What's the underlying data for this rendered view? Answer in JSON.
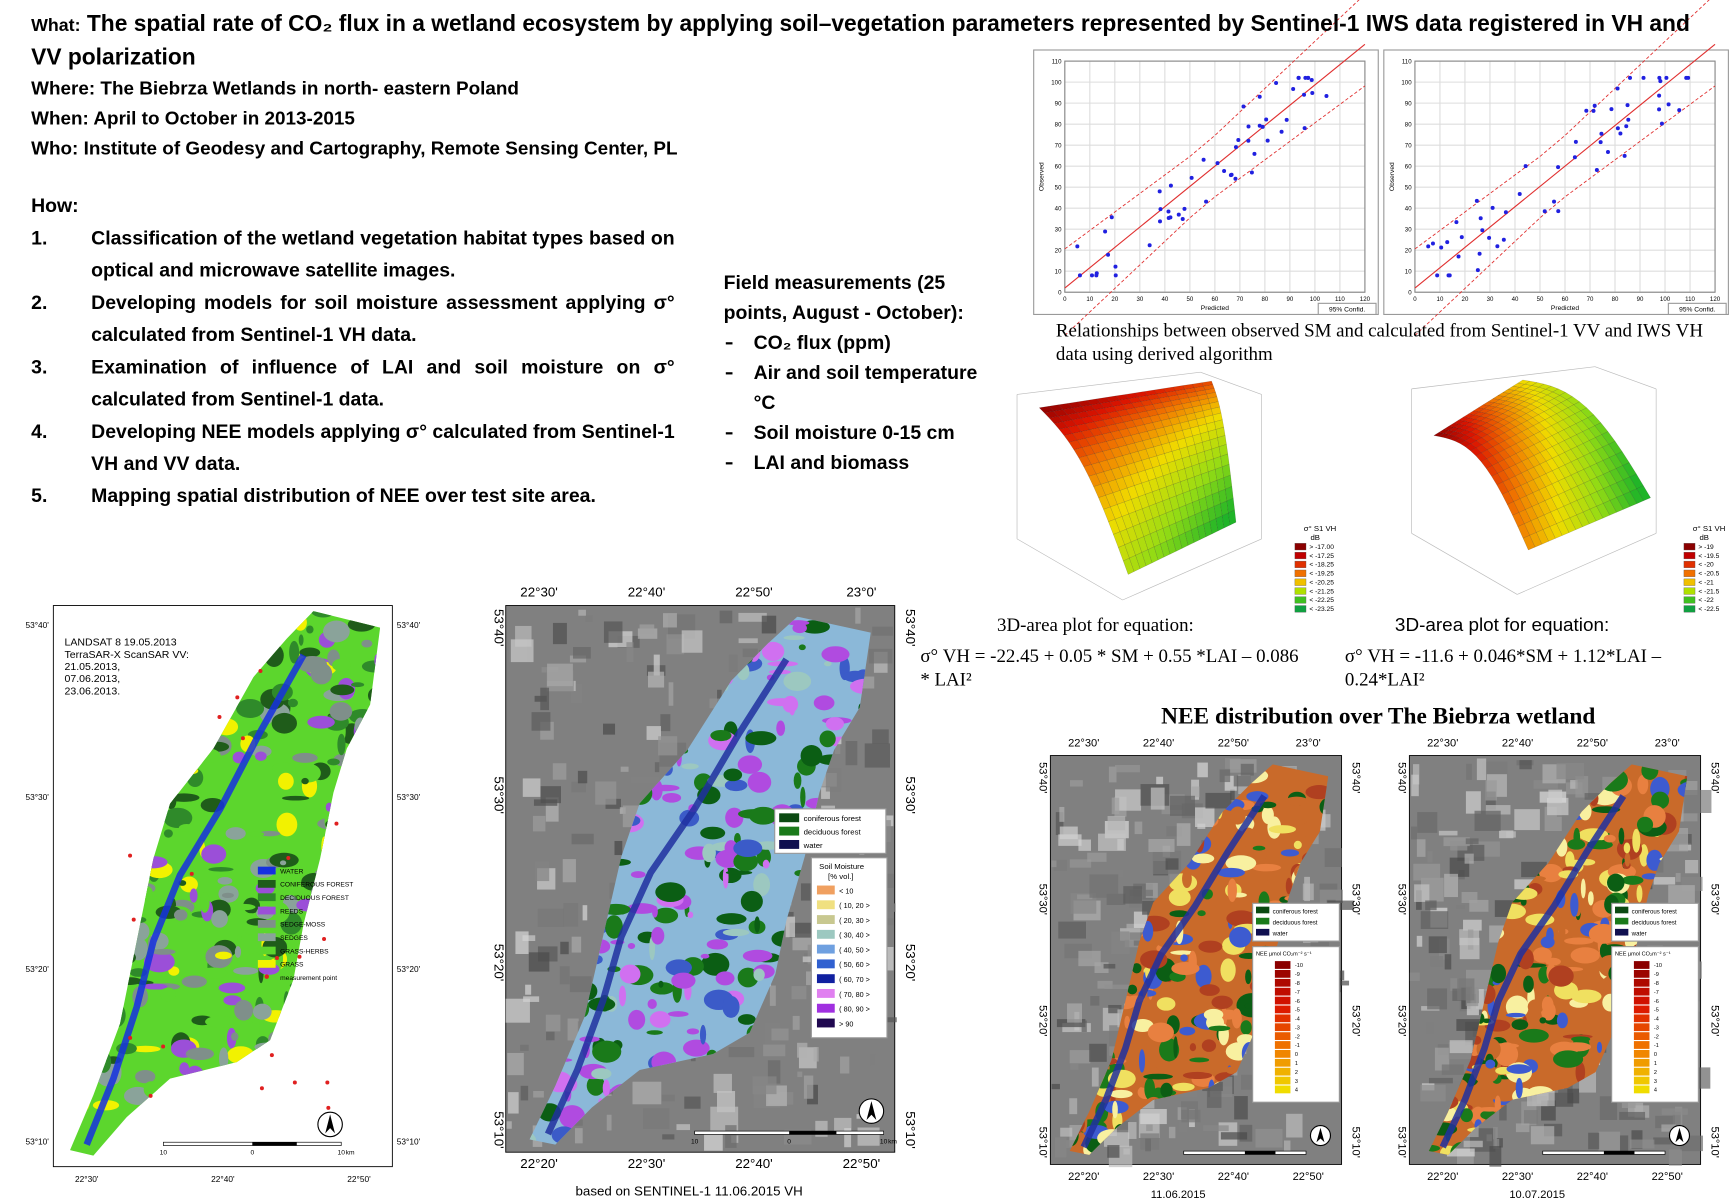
{
  "header": {
    "what_label": "What:",
    "title": "The spatial rate of CO₂ flux in a wetland ecosystem by applying soil–vegetation parameters represented by Sentinel-1 IWS data registered in VH and VV polarization",
    "where": "Where: The Biebrza Wetlands in north- eastern Poland",
    "when": "When:  April to October in 2013-2015",
    "who": "Who: Institute of Geodesy and Cartography, Remote Sensing Center, PL"
  },
  "how": {
    "heading": "How:",
    "steps": [
      {
        "number": "1.",
        "text": "Classification of the wetland vegetation habitat types based on optical and microwave satellite images."
      },
      {
        "number": "2.",
        "text": "Developing models for soil moisture assessment applying σ° calculated from Sentinel-1 VH data."
      },
      {
        "number": "3.",
        "text": "Examination of influence of LAI and soil moisture on σ° calculated from Sentinel-1 data."
      },
      {
        "number": "4.",
        "text": "Developing NEE models applying σ° calculated from Sentinel-1 VH and VV data."
      },
      {
        "number": "5.",
        "text": "Mapping spatial distribution of NEE over test site area."
      }
    ]
  },
  "field": {
    "heading": "Field measurements (25 points, August - October):",
    "items": [
      "CO₂ flux (ppm)",
      "Air and soil temperature °C",
      "Soil moisture 0-15 cm",
      "LAI and biomass"
    ]
  },
  "scatter": {
    "caption": "Relationships between observed SM and calculated from Sentinel-1 VV and IWS VH data using derived algorithm",
    "plots": [
      {
        "x_label": "Predicted",
        "y_label": "Observed",
        "legend": "95% Confid.",
        "xticks": [
          0,
          10,
          20,
          30,
          40,
          50,
          60,
          70,
          80,
          90,
          100,
          110,
          120
        ],
        "yticks": [
          0,
          10,
          20,
          30,
          40,
          50,
          60,
          70,
          80,
          90,
          100,
          110
        ]
      },
      {
        "x_label": "Predicted",
        "y_label": "Observed",
        "legend": "95% Confid.",
        "xticks": [
          0,
          10,
          20,
          30,
          40,
          50,
          60,
          70,
          80,
          90,
          100,
          110,
          120
        ],
        "yticks": [
          0,
          10,
          20,
          30,
          40,
          50,
          60,
          70,
          80,
          90,
          100,
          110
        ]
      }
    ]
  },
  "surface": {
    "plots": [
      {
        "caption": "3D-area plot for equation:",
        "equation": "σ° VH = -22.45 + 0.05 * SM + 0.55 *LAI – 0.086 * LAI²",
        "legend_title": "σ° S1 VH",
        "legend_unit": "dB",
        "legend": [
          {
            "label": "> -17.00",
            "color": "#8b0000"
          },
          {
            "label": "< -17.25",
            "color": "#c00000"
          },
          {
            "label": "< -18.25",
            "color": "#e03000"
          },
          {
            "label": "< -19.25",
            "color": "#f07000"
          },
          {
            "label": "< -20.25",
            "color": "#f0c000"
          },
          {
            "label": "< -21.25",
            "color": "#b0e000"
          },
          {
            "label": "< -22.25",
            "color": "#40c020"
          },
          {
            "label": "< -23.25",
            "color": "#10a040"
          }
        ]
      },
      {
        "caption": "3D-area plot for equation:",
        "equation": "σ° VH = -11.6 + 0.046*SM + 1.12*LAI – 0.24*LAI²",
        "legend_title": "σ° S1 VH",
        "legend_unit": "dB",
        "legend": [
          {
            "label": "> -19",
            "color": "#8b0000"
          },
          {
            "label": "< -19.5",
            "color": "#c00000"
          },
          {
            "label": "< -20",
            "color": "#e03000"
          },
          {
            "label": "< -20.5",
            "color": "#f07000"
          },
          {
            "label": "< -21",
            "color": "#f0c000"
          },
          {
            "label": "< -21.5",
            "color": "#b0e000"
          },
          {
            "label": "< -22",
            "color": "#40c020"
          },
          {
            "label": "< -22.5",
            "color": "#10a040"
          }
        ]
      }
    ]
  },
  "maps": [
    {
      "notes": [
        "LANDSAT 8 19.05.2013",
        "TerraSAR-X ScanSAR VV:",
        "21.05.2013,",
        "07.06.2013,",
        "23.06.2013."
      ],
      "legend": [
        {
          "label": "WATER",
          "color": "#1530e0"
        },
        {
          "label": "CONIFEROUS FOREST",
          "color": "#1f5c1a"
        },
        {
          "label": "DECIDUOUS FOREST",
          "color": "#2f8a2a"
        },
        {
          "label": "REEDS",
          "color": "#9b4fd8"
        },
        {
          "label": "SEDGE-MOSS",
          "color": "#7f8f8a"
        },
        {
          "label": "SEDGES",
          "color": "#8aa39a"
        },
        {
          "label": "GRASS-HERBS",
          "color": "#5cd62d"
        },
        {
          "label": "GRASS",
          "color": "#f2f200"
        },
        {
          "label": "measurement point",
          "color": "#e02020"
        }
      ],
      "left": [
        "53°40'",
        "53°30'",
        "53°20'",
        "53°10'"
      ],
      "right": [
        "53°40'",
        "53°30'",
        "53°20'",
        "53°10'"
      ],
      "bottom": [
        "22°30'",
        "22°40'",
        "22°50'"
      ],
      "scale": [
        "10",
        "0",
        "10",
        "km"
      ]
    },
    {
      "legend": [
        {
          "label": "coniferous forest",
          "color": "#0b4a12"
        },
        {
          "label": "deciduous forest",
          "color": "#1a7a1a"
        },
        {
          "label": "water",
          "color": "#101050"
        }
      ],
      "legend2_title": "Soil Moisture",
      "legend2_unit": "[% vol.]",
      "legend2": [
        {
          "label": "< 10",
          "color": "#f0a060"
        },
        {
          "label": "( 10, 20 >",
          "color": "#f0e080"
        },
        {
          "label": "( 20, 30 >",
          "color": "#c8c890"
        },
        {
          "label": "( 30, 40 >",
          "color": "#9cc8c0"
        },
        {
          "label": "( 40, 50 >",
          "color": "#6fa0e0"
        },
        {
          "label": "( 50, 60 >",
          "color": "#3060d0"
        },
        {
          "label": "( 60, 70 >",
          "color": "#1020a0"
        },
        {
          "label": "( 70, 80 >",
          "color": "#e080f0"
        },
        {
          "label": "( 80, 90 >",
          "color": "#a030e0"
        },
        {
          "label": "> 90",
          "color": "#200850"
        }
      ],
      "top": [
        "22°30'",
        "22°40'",
        "22°50'",
        "23°0'"
      ],
      "bottom": [
        "22°20'",
        "22°30'",
        "22°40'",
        "22°50'"
      ],
      "left": [
        "53°40'",
        "53°30'",
        "53°20'",
        "53°10'"
      ],
      "right": [
        "53°40'",
        "53°30'",
        "53°20'",
        "53°10'"
      ],
      "scale": [
        "10",
        "0",
        "10",
        "km"
      ],
      "caption": "based on SENTINEL-1  11.06.2015 VH"
    }
  ],
  "nee": {
    "title": "NEE distribution over The Biebrza wetland",
    "maps": [
      {
        "date": "11.06.2015",
        "legend": [
          {
            "label": "coniferous forest",
            "color": "#0b4a12"
          },
          {
            "label": "deciduous forest",
            "color": "#1a7a1a"
          },
          {
            "label": "water",
            "color": "#101050"
          }
        ],
        "legend2_title": "NEE µmol CO₂m⁻² s⁻¹",
        "legend2": [
          "-10",
          "-9",
          "-8",
          "-7",
          "-6",
          "-5",
          "-4",
          "-3",
          "-2",
          "-1",
          "0",
          "1",
          "2",
          "3",
          "4"
        ],
        "top": [
          "22°30'",
          "22°40'",
          "22°50'",
          "23°0'"
        ],
        "bottom": [
          "22°20'",
          "22°30'",
          "22°40'",
          "22°50'"
        ],
        "left": [
          "53°40'",
          "53°30'",
          "53°20'",
          "53°10'"
        ],
        "right": [
          "53°40'",
          "53°30'",
          "53°20'",
          "53°10'"
        ]
      },
      {
        "date": "10.07.2015",
        "legend": [
          {
            "label": "coniferous forest",
            "color": "#0b4a12"
          },
          {
            "label": "deciduous forest",
            "color": "#1a7a1a"
          },
          {
            "label": "water",
            "color": "#101050"
          }
        ],
        "legend2_title": "NEE µmol CO₂m⁻² s⁻¹",
        "legend2": [
          "-10",
          "-9",
          "-8",
          "-7",
          "-6",
          "-5",
          "-4",
          "-3",
          "-2",
          "-1",
          "0",
          "1",
          "2",
          "3",
          "4"
        ],
        "top": [
          "22°30'",
          "22°40'",
          "22°50'",
          "23°0'"
        ],
        "bottom": [
          "22°20'",
          "22°30'",
          "22°40'",
          "22°50'"
        ],
        "left": [
          "53°40'",
          "53°30'",
          "53°20'",
          "53°10'"
        ],
        "right": [
          "53°40'",
          "53°30'",
          "53°20'",
          "53°10'"
        ]
      }
    ]
  }
}
